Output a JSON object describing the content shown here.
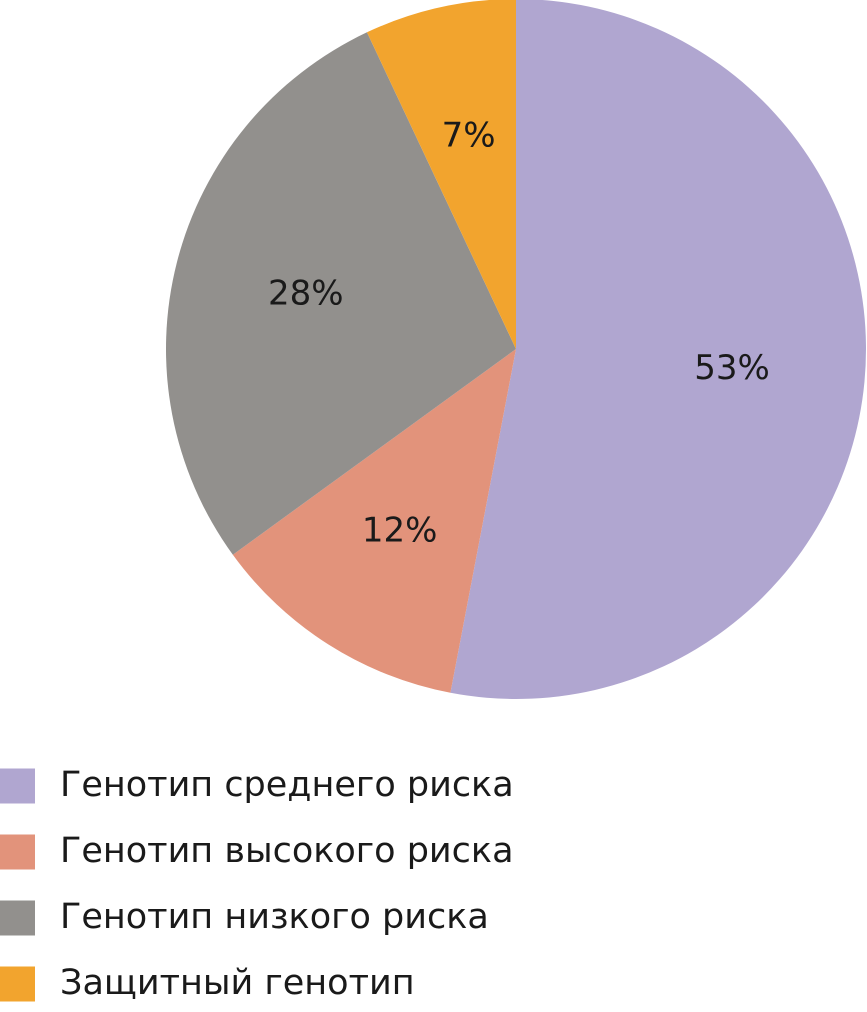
{
  "chart_data": {
    "type": "pie",
    "start_angle_deg": 0,
    "direction": "clockwise",
    "slices": [
      {
        "name": "Генотип среднего риска",
        "value": 53,
        "label": "53%",
        "color": "#b0a6d0"
      },
      {
        "name": "Генотип высокого риска",
        "value": 12,
        "label": "12%",
        "color": "#e2937b"
      },
      {
        "name": "Генотип низкого риска",
        "value": 28,
        "label": "28%",
        "color": "#92908d"
      },
      {
        "name": "Защитный генотип",
        "value": 7,
        "label": "7%",
        "color": "#f2a42e"
      }
    ],
    "legend": {
      "placement": "bottom-left",
      "entries": [
        "Генотип среднего риска",
        "Генотип высокого риска",
        "Генотип низкого риска",
        "Защитный генотип"
      ]
    }
  }
}
